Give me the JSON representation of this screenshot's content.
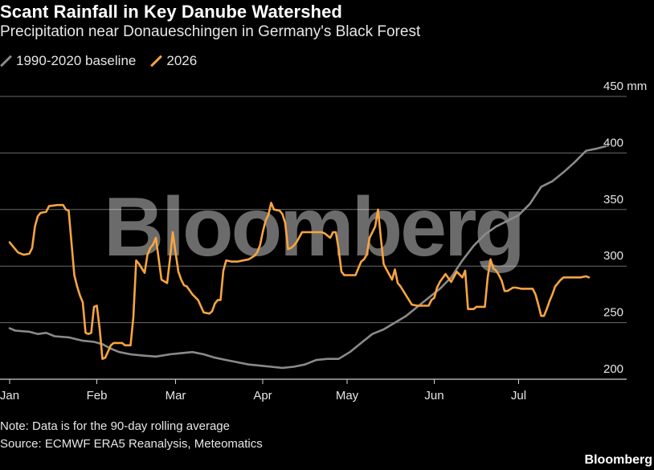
{
  "header": {
    "title": "Scant Rainfall in Key Danube Watershed",
    "subtitle": "Precipitation near Donaueschingen in Germany's Black Forest"
  },
  "legend": [
    {
      "name": "1990-2020 baseline",
      "color": "#8a8a8a"
    },
    {
      "name": "2026",
      "color": "#f7a540"
    }
  ],
  "watermark": "Bloomberg",
  "footer": {
    "note": "Note: Data is for the 90-day rolling average",
    "source": "Source: ECMWF ERA5 Reanalysis, Meteomatics",
    "brand": "Bloomberg"
  },
  "chart_data": {
    "type": "line",
    "title": "Scant Rainfall in Key Danube Watershed",
    "subtitle": "Precipitation near Donaueschingen in Germany's Black Forest",
    "x_axis": {
      "unit": "day of year",
      "ticks": [
        {
          "label": "Jan",
          "day": 1
        },
        {
          "label": "Feb",
          "day": 32
        },
        {
          "label": "Mar",
          "day": 60
        },
        {
          "label": "Apr",
          "day": 91
        },
        {
          "label": "May",
          "day": 121
        },
        {
          "label": "Jun",
          "day": 152
        },
        {
          "label": "Jul",
          "day": 182
        }
      ],
      "range": [
        1,
        212
      ]
    },
    "y_axis": {
      "unit": "mm",
      "range": [
        200,
        450
      ],
      "ticks": [
        200,
        250,
        300,
        350,
        400,
        450
      ],
      "tick_labels": [
        "200",
        "250",
        "300",
        "350",
        "400",
        "450 mm"
      ],
      "gridlines": true,
      "position": "right"
    },
    "series": [
      {
        "name": "1990-2020 baseline",
        "color": "#8a8a8a",
        "points": [
          [
            1,
            245
          ],
          [
            3,
            243
          ],
          [
            8,
            242
          ],
          [
            11,
            240
          ],
          [
            14,
            241
          ],
          [
            17,
            238
          ],
          [
            22,
            237
          ],
          [
            27,
            234
          ],
          [
            31,
            233
          ],
          [
            34,
            231
          ],
          [
            37,
            227
          ],
          [
            40,
            224
          ],
          [
            44,
            222
          ],
          [
            48,
            221
          ],
          [
            53,
            220
          ],
          [
            58,
            222
          ],
          [
            62,
            223
          ],
          [
            66,
            224
          ],
          [
            70,
            222
          ],
          [
            74,
            219
          ],
          [
            78,
            217
          ],
          [
            82,
            215
          ],
          [
            86,
            213
          ],
          [
            90,
            212
          ],
          [
            94,
            211
          ],
          [
            98,
            210
          ],
          [
            102,
            211
          ],
          [
            106,
            213
          ],
          [
            110,
            217
          ],
          [
            114,
            218
          ],
          [
            118,
            218
          ],
          [
            122,
            224
          ],
          [
            126,
            232
          ],
          [
            130,
            240
          ],
          [
            134,
            244
          ],
          [
            138,
            250
          ],
          [
            142,
            256
          ],
          [
            146,
            264
          ],
          [
            150,
            272
          ],
          [
            154,
            280
          ],
          [
            158,
            290
          ],
          [
            162,
            305
          ],
          [
            166,
            318
          ],
          [
            170,
            328
          ],
          [
            174,
            335
          ],
          [
            178,
            340
          ],
          [
            182,
            345
          ],
          [
            186,
            355
          ],
          [
            190,
            370
          ],
          [
            194,
            375
          ],
          [
            198,
            383
          ],
          [
            202,
            392
          ],
          [
            206,
            402
          ],
          [
            210,
            404
          ],
          [
            213,
            406
          ]
        ]
      },
      {
        "name": "2026",
        "color": "#f7a540",
        "points": [
          [
            1,
            321
          ],
          [
            2,
            318
          ],
          [
            4,
            312
          ],
          [
            6,
            310
          ],
          [
            8,
            311
          ],
          [
            9,
            316
          ],
          [
            10,
            335
          ],
          [
            11,
            344
          ],
          [
            12,
            347
          ],
          [
            14,
            348
          ],
          [
            15,
            353
          ],
          [
            18,
            354
          ],
          [
            20,
            354
          ],
          [
            21,
            350
          ],
          [
            22,
            349
          ],
          [
            24,
            292
          ],
          [
            25,
            282
          ],
          [
            26,
            274
          ],
          [
            27,
            268
          ],
          [
            28,
            241
          ],
          [
            29,
            240
          ],
          [
            30,
            241
          ],
          [
            31,
            264
          ],
          [
            32,
            265
          ],
          [
            33,
            245
          ],
          [
            34,
            218
          ],
          [
            35,
            219
          ],
          [
            37,
            230
          ],
          [
            38,
            232
          ],
          [
            41,
            232
          ],
          [
            42,
            230
          ],
          [
            44,
            230
          ],
          [
            45,
            255
          ],
          [
            46,
            305
          ],
          [
            47,
            302
          ],
          [
            48,
            298
          ],
          [
            49,
            294
          ],
          [
            50,
            310
          ],
          [
            51,
            316
          ],
          [
            52,
            319
          ],
          [
            53,
            325
          ],
          [
            55,
            288
          ],
          [
            57,
            285
          ],
          [
            58,
            306
          ],
          [
            59,
            330
          ],
          [
            60,
            312
          ],
          [
            61,
            295
          ],
          [
            62,
            288
          ],
          [
            63,
            283
          ],
          [
            64,
            282
          ],
          [
            66,
            275
          ],
          [
            68,
            270
          ],
          [
            70,
            259
          ],
          [
            72,
            258
          ],
          [
            73,
            260
          ],
          [
            74,
            267
          ],
          [
            75,
            270
          ],
          [
            76,
            270
          ],
          [
            77,
            296
          ],
          [
            78,
            305
          ],
          [
            80,
            304
          ],
          [
            82,
            304
          ],
          [
            84,
            305
          ],
          [
            86,
            306
          ],
          [
            88,
            309
          ],
          [
            89,
            312
          ],
          [
            90,
            318
          ],
          [
            91,
            330
          ],
          [
            92,
            340
          ],
          [
            93,
            345
          ],
          [
            94,
            356
          ],
          [
            95,
            350
          ],
          [
            97,
            349
          ],
          [
            98,
            346
          ],
          [
            99,
            338
          ],
          [
            100,
            315
          ],
          [
            101,
            316
          ],
          [
            102,
            318
          ],
          [
            103,
            321
          ],
          [
            105,
            330
          ],
          [
            107,
            330
          ],
          [
            110,
            330
          ],
          [
            112,
            330
          ],
          [
            113,
            329
          ],
          [
            114,
            327
          ],
          [
            115,
            325
          ],
          [
            116,
            330
          ],
          [
            117,
            330
          ],
          [
            118,
            315
          ],
          [
            119,
            295
          ],
          [
            120,
            292
          ],
          [
            122,
            292
          ],
          [
            124,
            292
          ],
          [
            125,
            298
          ],
          [
            126,
            304
          ],
          [
            127,
            306
          ],
          [
            128,
            310
          ],
          [
            129,
            325
          ],
          [
            130,
            330
          ],
          [
            131,
            335
          ],
          [
            132,
            350
          ],
          [
            133,
            325
          ],
          [
            134,
            302
          ],
          [
            135,
            297
          ],
          [
            137,
            288
          ],
          [
            138,
            297
          ],
          [
            139,
            285
          ],
          [
            140,
            282
          ],
          [
            142,
            274
          ],
          [
            144,
            266
          ],
          [
            146,
            265
          ],
          [
            148,
            265
          ],
          [
            150,
            265
          ],
          [
            151,
            270
          ],
          [
            152,
            272
          ],
          [
            153,
            281
          ],
          [
            154,
            286
          ],
          [
            156,
            293
          ],
          [
            158,
            286
          ],
          [
            160,
            295
          ],
          [
            162,
            290
          ],
          [
            163,
            296
          ],
          [
            164,
            262
          ],
          [
            166,
            262
          ],
          [
            167,
            264
          ],
          [
            170,
            264
          ],
          [
            171,
            290
          ],
          [
            172,
            306
          ],
          [
            173,
            298
          ],
          [
            174,
            296
          ],
          [
            175,
            292
          ],
          [
            176,
            287
          ],
          [
            177,
            278
          ],
          [
            178,
            278
          ],
          [
            180,
            281
          ],
          [
            181,
            281
          ],
          [
            183,
            280
          ],
          [
            185,
            280
          ],
          [
            187,
            280
          ],
          [
            188,
            275
          ],
          [
            189,
            266
          ],
          [
            190,
            256
          ],
          [
            191,
            256
          ],
          [
            192,
            262
          ],
          [
            193,
            269
          ],
          [
            194,
            275
          ],
          [
            195,
            282
          ],
          [
            196,
            285
          ],
          [
            197,
            288
          ],
          [
            198,
            290
          ],
          [
            200,
            290
          ],
          [
            202,
            290
          ],
          [
            204,
            290
          ],
          [
            206,
            291
          ],
          [
            207,
            290
          ]
        ]
      }
    ],
    "legend_position": "top-left"
  }
}
